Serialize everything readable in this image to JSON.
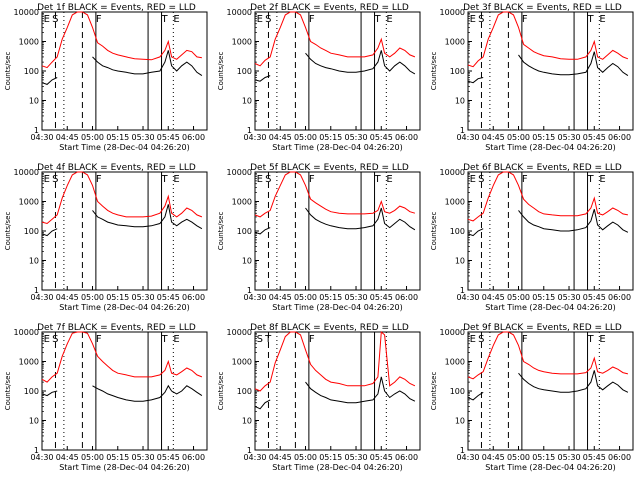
{
  "figure": {
    "ylabel": "Counts/sec",
    "xlabel": "Start Time (28-Dec-04 04:26:20)",
    "yticks": [
      "1",
      "10",
      "100",
      "1000",
      "10000"
    ],
    "xticks": [
      "04:30",
      "04:45",
      "05:00",
      "05:15",
      "05:30",
      "05:45",
      "06:00"
    ]
  },
  "colors": {
    "events": "#000000",
    "lld": "#ff0000",
    "axes": "#000000"
  },
  "chart_data": [
    {
      "type": "line",
      "title": "Det 1f BLACK = Events, RED = LLD",
      "letters": [
        "E",
        "S",
        "F",
        "T",
        "E"
      ],
      "x": [
        "04:30",
        "04:33",
        "04:36",
        "04:39",
        "04:42",
        "04:45",
        "04:48",
        "04:51",
        "04:54",
        "04:57",
        "05:00",
        "05:03",
        "05:06",
        "05:09",
        "05:12",
        "05:15",
        "05:20",
        "05:25",
        "05:30",
        "05:35",
        "05:40",
        "05:43",
        "05:45",
        "05:47",
        "05:50",
        "05:53",
        "05:56",
        "05:59",
        "06:02",
        "06:05"
      ],
      "series": [
        {
          "name": "LLD",
          "values": [
            150,
            130,
            200,
            300,
            1200,
            3000,
            8000,
            10000,
            10000,
            8000,
            3000,
            900,
            700,
            500,
            400,
            350,
            300,
            260,
            250,
            240,
            300,
            500,
            1000,
            300,
            250,
            350,
            500,
            450,
            300,
            280
          ]
        },
        {
          "name": "Events",
          "values": [
            40,
            35,
            50,
            60,
            0,
            0,
            0,
            0,
            0,
            0,
            300,
            200,
            150,
            130,
            110,
            100,
            90,
            80,
            80,
            90,
            100,
            200,
            500,
            150,
            100,
            150,
            200,
            150,
            90,
            70
          ]
        }
      ],
      "ylim": [
        1,
        10000
      ],
      "log_y": true
    },
    {
      "type": "line",
      "title": "Det 2f BLACK = Events, RED = LLD",
      "letters": [
        "E",
        "S",
        "F",
        "T",
        "E"
      ],
      "x": [
        "04:30",
        "04:33",
        "04:36",
        "04:39",
        "04:42",
        "04:45",
        "04:48",
        "04:51",
        "04:54",
        "04:57",
        "05:00",
        "05:03",
        "05:06",
        "05:09",
        "05:12",
        "05:15",
        "05:20",
        "05:25",
        "05:30",
        "05:35",
        "05:40",
        "05:43",
        "05:45",
        "05:47",
        "05:50",
        "05:53",
        "05:56",
        "05:59",
        "06:02",
        "06:05"
      ],
      "series": [
        {
          "name": "LLD",
          "values": [
            180,
            150,
            230,
            300,
            1200,
            3000,
            8000,
            10000,
            10000,
            8000,
            3000,
            1000,
            800,
            600,
            500,
            400,
            350,
            300,
            300,
            300,
            350,
            600,
            1200,
            400,
            300,
            400,
            600,
            500,
            350,
            300
          ]
        },
        {
          "name": "Events",
          "values": [
            50,
            45,
            60,
            70,
            0,
            0,
            0,
            0,
            0,
            0,
            400,
            250,
            180,
            150,
            130,
            120,
            100,
            90,
            90,
            100,
            120,
            200,
            500,
            150,
            100,
            150,
            200,
            150,
            100,
            80
          ]
        }
      ],
      "ylim": [
        1,
        10000
      ],
      "log_y": true
    },
    {
      "type": "line",
      "title": "Det 3f BLACK = Events, RED = LLD",
      "letters": [
        "E",
        "S",
        "F",
        "T",
        "E"
      ],
      "x": [
        "04:30",
        "04:33",
        "04:36",
        "04:39",
        "04:42",
        "04:45",
        "04:48",
        "04:51",
        "04:54",
        "04:57",
        "05:00",
        "05:03",
        "05:06",
        "05:09",
        "05:12",
        "05:15",
        "05:20",
        "05:25",
        "05:30",
        "05:35",
        "05:40",
        "05:43",
        "05:45",
        "05:47",
        "05:50",
        "05:53",
        "05:56",
        "05:59",
        "06:02",
        "06:05"
      ],
      "series": [
        {
          "name": "LLD",
          "values": [
            160,
            140,
            220,
            300,
            1200,
            3000,
            8000,
            10000,
            10000,
            8000,
            3000,
            800,
            600,
            450,
            380,
            330,
            300,
            260,
            250,
            250,
            300,
            500,
            1000,
            300,
            250,
            350,
            500,
            400,
            300,
            260
          ]
        },
        {
          "name": "Events",
          "values": [
            45,
            40,
            55,
            60,
            0,
            0,
            0,
            0,
            0,
            0,
            350,
            200,
            150,
            120,
            100,
            90,
            80,
            75,
            75,
            80,
            90,
            180,
            450,
            130,
            90,
            130,
            180,
            140,
            90,
            70
          ]
        }
      ],
      "ylim": [
        1,
        10000
      ],
      "log_y": true
    },
    {
      "type": "line",
      "title": "Det 4f BLACK = Events, RED = LLD",
      "letters": [
        "E",
        "S",
        "F",
        "T",
        "E"
      ],
      "x": [
        "04:30",
        "04:33",
        "04:36",
        "04:39",
        "04:42",
        "04:45",
        "04:48",
        "04:51",
        "04:54",
        "04:57",
        "05:00",
        "05:03",
        "05:06",
        "05:09",
        "05:12",
        "05:15",
        "05:20",
        "05:25",
        "05:30",
        "05:35",
        "05:40",
        "05:43",
        "05:45",
        "05:47",
        "05:50",
        "05:53",
        "05:56",
        "05:59",
        "06:02",
        "06:05"
      ],
      "series": [
        {
          "name": "LLD",
          "values": [
            200,
            180,
            250,
            350,
            1300,
            3500,
            8000,
            10000,
            10000,
            8000,
            3500,
            1000,
            700,
            500,
            400,
            350,
            300,
            300,
            300,
            320,
            400,
            700,
            1500,
            400,
            300,
            400,
            600,
            500,
            350,
            300
          ]
        },
        {
          "name": "Events",
          "values": [
            80,
            70,
            100,
            120,
            0,
            0,
            0,
            0,
            0,
            0,
            500,
            300,
            250,
            200,
            180,
            160,
            150,
            140,
            140,
            150,
            180,
            300,
            800,
            200,
            150,
            200,
            250,
            200,
            150,
            120
          ]
        }
      ],
      "ylim": [
        1,
        10000
      ],
      "log_y": true
    },
    {
      "type": "line",
      "title": "Det 5f BLACK = Events, RED = LLD",
      "letters": [
        "E",
        "S",
        "F",
        "T",
        "E"
      ],
      "x": [
        "04:30",
        "04:33",
        "04:36",
        "04:39",
        "04:42",
        "04:45",
        "04:48",
        "04:51",
        "04:54",
        "04:57",
        "05:00",
        "05:03",
        "05:06",
        "05:09",
        "05:12",
        "05:15",
        "05:20",
        "05:25",
        "05:30",
        "05:35",
        "05:40",
        "05:43",
        "05:45",
        "05:47",
        "05:50",
        "05:53",
        "05:56",
        "05:59",
        "06:02",
        "06:05"
      ],
      "series": [
        {
          "name": "LLD",
          "values": [
            350,
            300,
            400,
            500,
            1500,
            3500,
            8000,
            10000,
            10000,
            8000,
            3500,
            1200,
            900,
            700,
            550,
            450,
            400,
            380,
            380,
            380,
            400,
            500,
            1000,
            450,
            400,
            500,
            700,
            600,
            450,
            400
          ]
        },
        {
          "name": "Events",
          "values": [
            90,
            80,
            110,
            130,
            0,
            0,
            0,
            0,
            0,
            0,
            600,
            350,
            250,
            200,
            170,
            150,
            130,
            120,
            120,
            130,
            150,
            250,
            600,
            180,
            130,
            180,
            250,
            200,
            140,
            110
          ]
        }
      ],
      "ylim": [
        1,
        10000
      ],
      "log_y": true
    },
    {
      "type": "line",
      "title": "Det 6f BLACK = Events, RED = LLD",
      "letters": [
        "E",
        "S",
        "F",
        "T",
        "E"
      ],
      "x": [
        "04:30",
        "04:33",
        "04:36",
        "04:39",
        "04:42",
        "04:45",
        "04:48",
        "04:51",
        "04:54",
        "04:57",
        "05:00",
        "05:03",
        "05:06",
        "05:09",
        "05:12",
        "05:15",
        "05:20",
        "05:25",
        "05:30",
        "05:35",
        "05:40",
        "05:43",
        "05:45",
        "05:47",
        "05:50",
        "05:53",
        "05:56",
        "05:59",
        "06:02",
        "06:05"
      ],
      "series": [
        {
          "name": "LLD",
          "values": [
            250,
            220,
            300,
            400,
            1300,
            3500,
            8000,
            10000,
            10000,
            8000,
            3500,
            1200,
            800,
            600,
            450,
            380,
            350,
            330,
            330,
            330,
            380,
            600,
            1300,
            400,
            350,
            450,
            600,
            500,
            380,
            350
          ]
        },
        {
          "name": "Events",
          "values": [
            80,
            70,
            100,
            120,
            0,
            0,
            0,
            0,
            0,
            0,
            500,
            300,
            200,
            160,
            140,
            120,
            110,
            100,
            100,
            110,
            130,
            220,
            550,
            160,
            110,
            150,
            200,
            160,
            110,
            90
          ]
        }
      ],
      "ylim": [
        1,
        10000
      ],
      "log_y": true
    },
    {
      "type": "line",
      "title": "Det 7f BLACK = Events, RED = LLD",
      "letters": [
        "E",
        "S",
        "F",
        "T",
        "E"
      ],
      "x": [
        "04:30",
        "04:33",
        "04:36",
        "04:39",
        "04:42",
        "04:45",
        "04:48",
        "04:51",
        "04:54",
        "04:57",
        "05:00",
        "05:03",
        "05:06",
        "05:09",
        "05:12",
        "05:15",
        "05:20",
        "05:25",
        "05:30",
        "05:35",
        "05:40",
        "05:43",
        "05:45",
        "05:47",
        "05:50",
        "05:53",
        "05:56",
        "05:59",
        "06:02",
        "06:05"
      ],
      "series": [
        {
          "name": "LLD",
          "values": [
            250,
            200,
            300,
            400,
            1500,
            4000,
            9000,
            10000,
            10000,
            9000,
            4000,
            1500,
            1000,
            700,
            500,
            400,
            350,
            300,
            300,
            300,
            350,
            500,
            1000,
            400,
            350,
            450,
            600,
            500,
            350,
            300
          ]
        },
        {
          "name": "Events",
          "values": [
            80,
            70,
            90,
            100,
            0,
            0,
            0,
            0,
            0,
            0,
            150,
            120,
            100,
            80,
            70,
            60,
            50,
            45,
            45,
            50,
            60,
            90,
            150,
            100,
            80,
            100,
            150,
            120,
            90,
            70
          ]
        }
      ],
      "ylim": [
        1,
        10000
      ],
      "log_y": true
    },
    {
      "type": "line",
      "title": "Det 8f BLACK = Events, RED = LLD",
      "letters": [
        "S",
        "T",
        "F"
      ],
      "x": [
        "04:30",
        "04:33",
        "04:36",
        "04:39",
        "04:42",
        "04:45",
        "04:48",
        "04:51",
        "04:54",
        "04:57",
        "05:00",
        "05:03",
        "05:06",
        "05:09",
        "05:12",
        "05:15",
        "05:20",
        "05:25",
        "05:30",
        "05:35",
        "05:40",
        "05:43",
        "05:45",
        "05:47",
        "05:50",
        "05:53",
        "05:56",
        "05:59",
        "06:02",
        "06:05"
      ],
      "series": [
        {
          "name": "LLD",
          "values": [
            120,
            100,
            150,
            200,
            900,
            2500,
            7000,
            10000,
            10000,
            8000,
            2500,
            800,
            500,
            350,
            250,
            200,
            180,
            150,
            150,
            150,
            180,
            300,
            10000,
            8000,
            150,
            200,
            300,
            250,
            180,
            150
          ]
        },
        {
          "name": "Events",
          "values": [
            30,
            25,
            40,
            50,
            0,
            0,
            0,
            0,
            0,
            0,
            200,
            120,
            90,
            70,
            60,
            50,
            45,
            40,
            40,
            45,
            50,
            80,
            300,
            100,
            60,
            80,
            100,
            80,
            55,
            45
          ]
        }
      ],
      "ylim": [
        1,
        10000
      ],
      "log_y": true
    },
    {
      "type": "line",
      "title": "Det 9f BLACK = Events, RED = LLD",
      "letters": [
        "E",
        "S",
        "F",
        "T",
        "E"
      ],
      "x": [
        "04:30",
        "04:33",
        "04:36",
        "04:39",
        "04:42",
        "04:45",
        "04:48",
        "04:51",
        "04:54",
        "04:57",
        "05:00",
        "05:03",
        "05:06",
        "05:09",
        "05:12",
        "05:15",
        "05:20",
        "05:25",
        "05:30",
        "05:35",
        "05:40",
        "05:43",
        "05:45",
        "05:47",
        "05:50",
        "05:53",
        "05:56",
        "05:59",
        "06:02",
        "06:05"
      ],
      "series": [
        {
          "name": "LLD",
          "values": [
            300,
            260,
            350,
            450,
            1300,
            3500,
            8000,
            10000,
            10000,
            8000,
            3500,
            1000,
            800,
            600,
            500,
            450,
            400,
            380,
            380,
            380,
            420,
            600,
            1300,
            450,
            400,
            500,
            650,
            550,
            420,
            380
          ]
        },
        {
          "name": "Events",
          "values": [
            60,
            50,
            70,
            90,
            0,
            0,
            0,
            0,
            0,
            0,
            400,
            250,
            180,
            140,
            120,
            110,
            100,
            90,
            90,
            100,
            120,
            200,
            500,
            150,
            110,
            150,
            200,
            160,
            110,
            90
          ]
        }
      ],
      "ylim": [
        1,
        10000
      ],
      "log_y": true
    }
  ]
}
